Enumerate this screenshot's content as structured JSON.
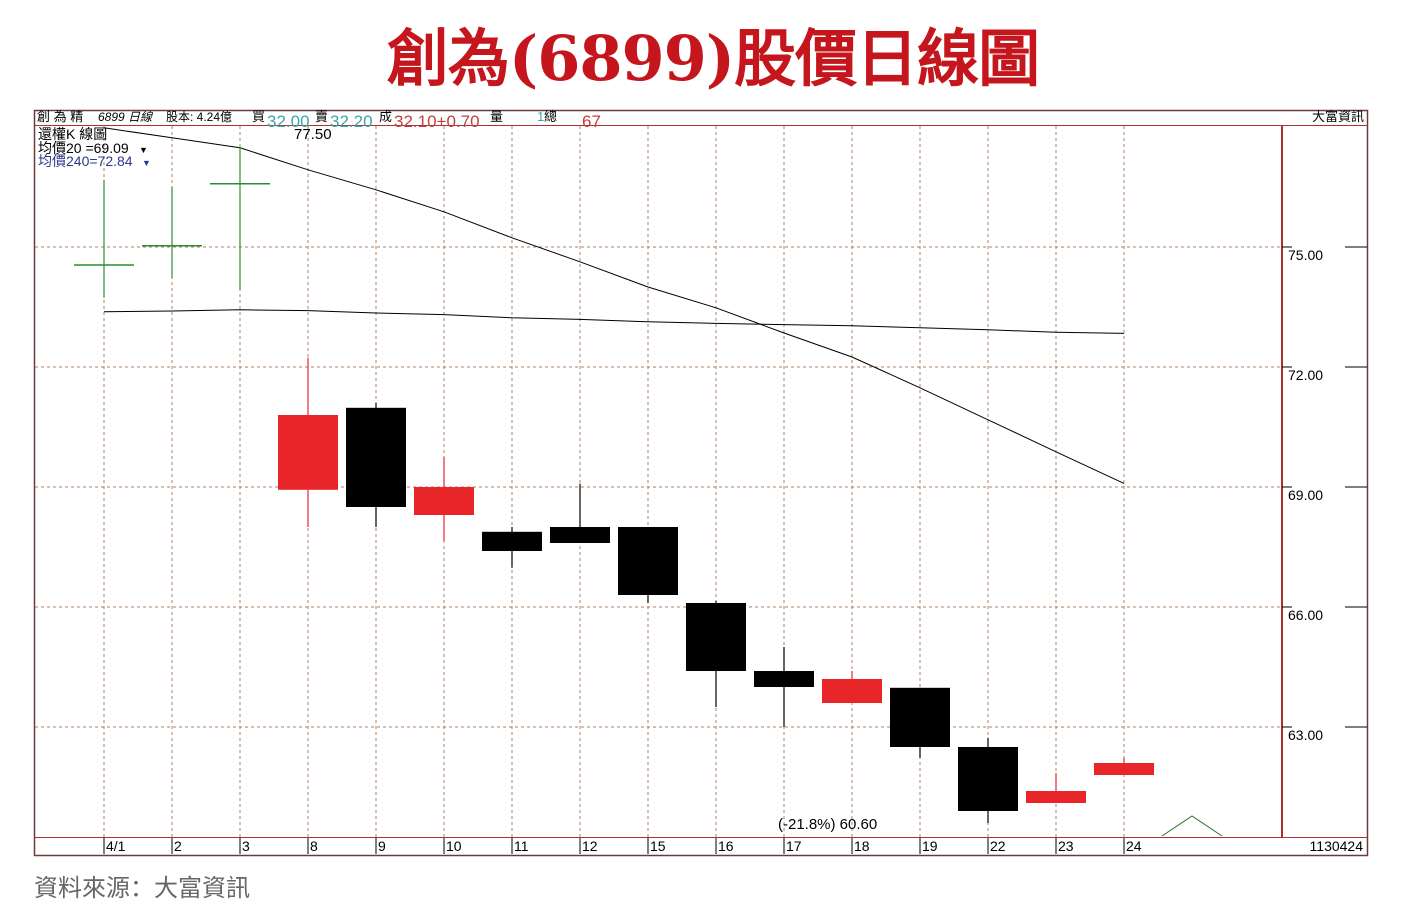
{
  "title": "創為(6899)股價日線圖",
  "source": "資料來源：大富資訊",
  "header": {
    "name": "創 為 精",
    "code": "6899 日線",
    "capital": "股本: 4.24億",
    "buy_label": "買",
    "buy": "32.00",
    "sell_label": "賣",
    "sell": "32.20",
    "deal_label": "成",
    "deal": "32.10+0.70",
    "volume_label": "量",
    "volume": "1",
    "total_label": "總",
    "total": "67",
    "brand": "大富資訊"
  },
  "legend": {
    "chart_name": "還權K 線圖",
    "ma20": "均價20 =69.09",
    "ma240": "均價240=72.84"
  },
  "colors": {
    "up": "#e8262a",
    "down": "#000000",
    "flat": "#2e8b2e",
    "ma": "#000000",
    "grid": "#b08060",
    "axis": "#b03030"
  },
  "chart_data": {
    "type": "candlestick",
    "title": "創為(6899)股價日線圖",
    "categories": [
      "4/1",
      "2",
      "3",
      "8",
      "9",
      "10",
      "11",
      "12",
      "15",
      "16",
      "17",
      "18",
      "19",
      "22",
      "23",
      "24"
    ],
    "ohlc": [
      {
        "o": 74.55,
        "h": 76.68,
        "l": 73.73,
        "c": 74.55
      },
      {
        "o": 75.03,
        "h": 76.5,
        "l": 74.23,
        "c": 75.03
      },
      {
        "o": 76.58,
        "h": 77.5,
        "l": 73.93,
        "c": 76.58
      },
      {
        "o": 68.93,
        "h": 72.23,
        "l": 68.0,
        "c": 70.8
      },
      {
        "o": 70.98,
        "h": 71.1,
        "l": 68.0,
        "c": 68.5
      },
      {
        "o": 68.3,
        "h": 69.75,
        "l": 67.65,
        "c": 69.0
      },
      {
        "o": 67.88,
        "h": 68.0,
        "l": 66.98,
        "c": 67.4
      },
      {
        "o": 68.0,
        "h": 69.08,
        "l": 67.6,
        "c": 67.6
      },
      {
        "o": 68.0,
        "h": 68.0,
        "l": 66.1,
        "c": 66.3
      },
      {
        "o": 66.1,
        "h": 66.15,
        "l": 63.5,
        "c": 64.4
      },
      {
        "o": 64.4,
        "h": 65.0,
        "l": 63.0,
        "c": 64.0
      },
      {
        "o": 63.6,
        "h": 64.4,
        "l": 63.6,
        "c": 64.2
      },
      {
        "o": 63.98,
        "h": 63.98,
        "l": 62.23,
        "c": 62.5
      },
      {
        "o": 62.5,
        "h": 62.73,
        "l": 60.6,
        "c": 60.9
      },
      {
        "o": 61.1,
        "h": 61.85,
        "l": 61.1,
        "c": 61.4
      },
      {
        "o": 61.8,
        "h": 62.23,
        "l": 61.8,
        "c": 62.1
      }
    ],
    "series": [
      {
        "name": "均價20",
        "values": [
          77.98,
          77.73,
          77.48,
          76.93,
          76.43,
          75.88,
          75.23,
          74.63,
          74.0,
          73.48,
          72.85,
          72.25,
          71.48,
          70.68,
          69.88,
          69.09
        ]
      },
      {
        "name": "均價240",
        "values": [
          73.38,
          73.4,
          73.43,
          73.41,
          73.35,
          73.31,
          73.23,
          73.19,
          73.13,
          73.09,
          73.06,
          73.03,
          72.98,
          72.93,
          72.87,
          72.84
        ]
      }
    ],
    "y_ticks": [
      "75.00",
      "72.00",
      "69.00",
      "66.00",
      "63.00"
    ],
    "ylim": [
      60.3,
      78.0
    ],
    "annotations": {
      "high": "77.50",
      "low": "(-21.8%) 60.60"
    },
    "date_code": "1130424",
    "grid": true
  }
}
